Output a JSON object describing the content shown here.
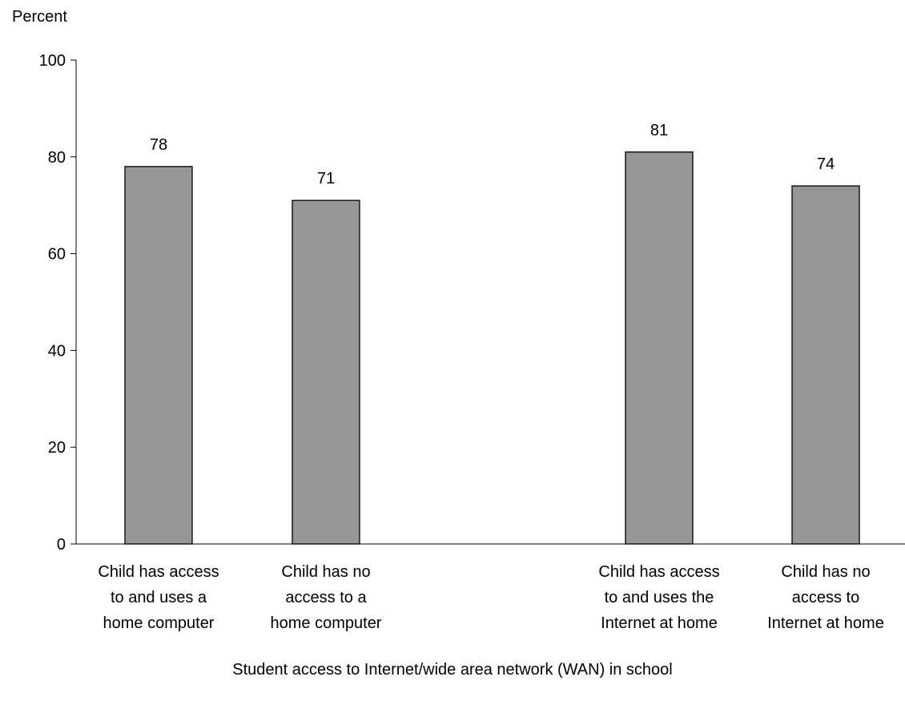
{
  "chart_data": {
    "type": "bar",
    "ylabel": "Percent",
    "xlabel": "Student access to Internet/wide area network (WAN) in school",
    "ylim": [
      0,
      100
    ],
    "yticks": [
      0,
      20,
      40,
      60,
      80,
      100
    ],
    "grid": false,
    "legend": "none",
    "categories": [
      [
        "Child has access",
        "to and uses a",
        "home computer"
      ],
      [
        "Child has no",
        "access to a",
        "home computer"
      ],
      [
        "Child has access",
        "to and uses the",
        "Internet at home"
      ],
      [
        "Child has no",
        "access to",
        "Internet at home"
      ]
    ],
    "values": [
      78,
      71,
      81,
      74
    ],
    "data_labels": [
      "78",
      "71",
      "81",
      "74"
    ],
    "colors": {
      "bar_fill": "#969696",
      "bar_stroke": "#000000",
      "axis": "#000000",
      "text": "#000000"
    }
  }
}
